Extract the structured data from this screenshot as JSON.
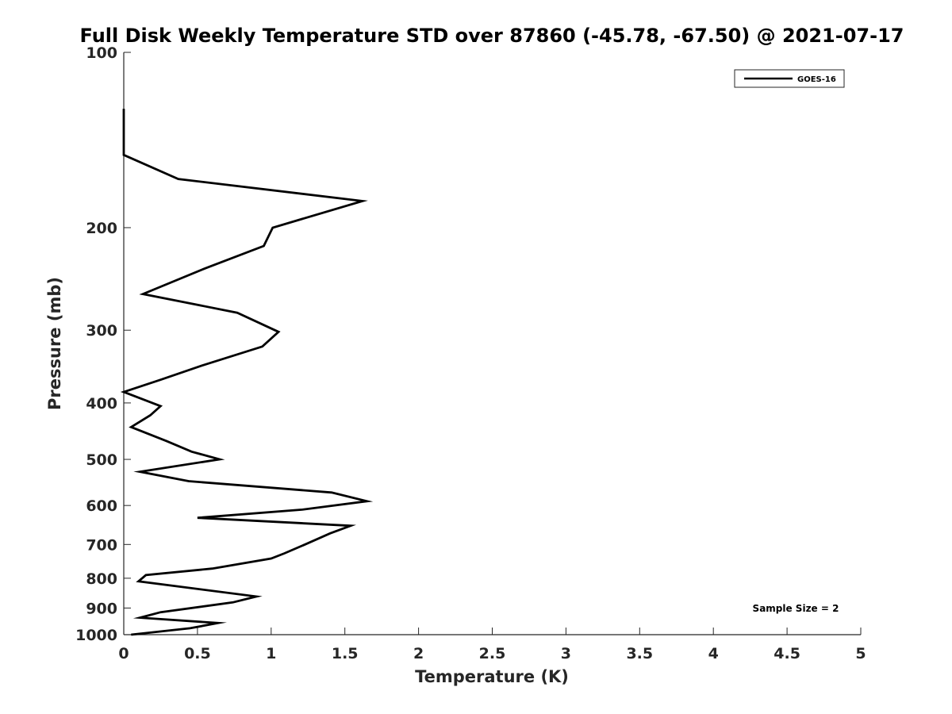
{
  "chart_data": {
    "type": "line",
    "title": "Full Disk Weekly Temperature STD over 87860 (-45.78, -67.50) @ 2021-07-17",
    "xlabel": "Temperature (K)",
    "ylabel": "Pressure (mb)",
    "xlim": [
      0,
      5
    ],
    "ylim": [
      100,
      1000
    ],
    "y_scale": "log",
    "y_reversed": true,
    "x_ticks": [
      0,
      0.5,
      1,
      1.5,
      2,
      2.5,
      3,
      3.5,
      4,
      4.5,
      5
    ],
    "x_tick_labels": [
      "0",
      "0.5",
      "1",
      "1.5",
      "2",
      "2.5",
      "3",
      "3.5",
      "4",
      "4.5",
      "5"
    ],
    "y_ticks": [
      100,
      200,
      300,
      400,
      500,
      600,
      700,
      800,
      900,
      1000
    ],
    "y_tick_labels": [
      "100",
      "200",
      "300",
      "400",
      "500",
      "600",
      "700",
      "800",
      "900",
      "1000"
    ],
    "grid": false,
    "legend_position": "top-right",
    "series": [
      {
        "name": "GOES-16",
        "color": "#000000",
        "points": [
          [
            0.0,
            125
          ],
          [
            0.0,
            150
          ],
          [
            0.37,
            165
          ],
          [
            1.62,
            180
          ],
          [
            1.01,
            200
          ],
          [
            0.95,
            215
          ],
          [
            0.55,
            235
          ],
          [
            0.13,
            260
          ],
          [
            0.77,
            280
          ],
          [
            1.05,
            302
          ],
          [
            0.94,
            320
          ],
          [
            0.53,
            345
          ],
          [
            0.25,
            365
          ],
          [
            0.0,
            383
          ],
          [
            0.25,
            405
          ],
          [
            0.18,
            420
          ],
          [
            0.05,
            440
          ],
          [
            0.29,
            465
          ],
          [
            0.46,
            485
          ],
          [
            0.65,
            500
          ],
          [
            0.11,
            525
          ],
          [
            0.44,
            545
          ],
          [
            1.41,
            570
          ],
          [
            1.65,
            590
          ],
          [
            1.21,
            610
          ],
          [
            0.5,
            630
          ],
          [
            1.54,
            650
          ],
          [
            1.4,
            670
          ],
          [
            1.23,
            700
          ],
          [
            1.09,
            725
          ],
          [
            1.0,
            740
          ],
          [
            0.6,
            770
          ],
          [
            0.15,
            790
          ],
          [
            0.1,
            810
          ],
          [
            0.9,
            860
          ],
          [
            0.74,
            880
          ],
          [
            0.25,
            915
          ],
          [
            0.11,
            935
          ],
          [
            0.64,
            955
          ],
          [
            0.45,
            975
          ],
          [
            0.05,
            1000
          ]
        ]
      }
    ],
    "annotation": "Sample Size = 2"
  }
}
